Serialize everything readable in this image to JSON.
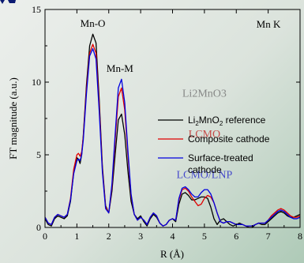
{
  "chart_data": {
    "type": "line",
    "panel_label": "Mn K",
    "xlabel": "R (Å)",
    "ylabel": "FT magnitude (a.u.)",
    "xlim": [
      0,
      8
    ],
    "ylim": [
      0,
      15
    ],
    "x_ticks": [
      "0",
      "1",
      "2",
      "3",
      "4",
      "5",
      "6",
      "7",
      "8"
    ],
    "y_ticks": [
      "0",
      "5",
      "10",
      "15"
    ],
    "grid": false,
    "legend_position": "right",
    "legend_sub": "2",
    "legend_sup": "3",
    "annotations": [
      {
        "text": "Mn-O",
        "x": 1.5,
        "y": 13.8
      },
      {
        "text": "Mn-M",
        "x": 2.35,
        "y": 10.7
      }
    ],
    "overlay_labels": [
      {
        "text": "Li2MnO3",
        "color": "#6a6a6a",
        "x": 5.0,
        "y": 9.0
      },
      {
        "text": "LCMO",
        "color": "#c01818",
        "x": 5.0,
        "y": 6.2
      },
      {
        "text": "LCMO/LNP",
        "color": "#1515c8",
        "x": 5.0,
        "y": 3.4
      }
    ],
    "series": [
      {
        "name": "Li2MnO3 reference",
        "legend": {
          "pre": "Li",
          "mid": "MnO",
          "post": " reference"
        },
        "color": "#000000",
        "x": [
          0.0,
          0.1,
          0.2,
          0.3,
          0.4,
          0.5,
          0.6,
          0.7,
          0.8,
          0.9,
          1.0,
          1.05,
          1.1,
          1.15,
          1.2,
          1.3,
          1.4,
          1.5,
          1.6,
          1.7,
          1.8,
          1.9,
          2.0,
          2.1,
          2.2,
          2.3,
          2.4,
          2.5,
          2.6,
          2.7,
          2.8,
          2.9,
          3.0,
          3.1,
          3.2,
          3.3,
          3.4,
          3.5,
          3.6,
          3.7,
          3.8,
          3.9,
          4.0,
          4.1,
          4.2,
          4.3,
          4.4,
          4.5,
          4.6,
          4.7,
          4.8,
          4.9,
          5.0,
          5.1,
          5.2,
          5.3,
          5.4,
          5.5,
          5.6,
          5.7,
          5.8,
          5.9,
          6.0,
          6.1,
          6.2,
          6.3,
          6.4,
          6.5,
          6.6,
          6.7,
          6.8,
          6.9,
          7.0,
          7.1,
          7.2,
          7.3,
          7.4,
          7.5,
          7.6,
          7.7,
          7.8,
          7.9,
          8.0
        ],
        "y": [
          0.6,
          0.2,
          0.1,
          0.6,
          0.8,
          0.7,
          0.6,
          0.8,
          1.8,
          3.8,
          4.8,
          4.7,
          4.4,
          5.0,
          6.3,
          9.8,
          12.5,
          13.3,
          12.7,
          8.8,
          4.2,
          1.5,
          1.0,
          2.5,
          5.0,
          7.4,
          7.8,
          6.4,
          3.9,
          1.8,
          0.9,
          0.6,
          0.8,
          0.4,
          0.1,
          0.6,
          0.9,
          0.7,
          0.3,
          0.1,
          0.2,
          0.5,
          0.6,
          0.4,
          1.6,
          2.3,
          2.4,
          2.2,
          1.9,
          1.9,
          2.0,
          2.1,
          2.1,
          2.0,
          1.4,
          0.6,
          0.2,
          0.5,
          0.6,
          0.4,
          0.2,
          0.1,
          0.2,
          0.3,
          0.2,
          0.1,
          0.0,
          0.0,
          0.2,
          0.3,
          0.2,
          0.2,
          0.4,
          0.6,
          0.8,
          1.0,
          1.1,
          1.0,
          0.8,
          0.7,
          0.7,
          0.8,
          0.9
        ]
      },
      {
        "name": "Composite cathode",
        "legend": {
          "pre": "Composite cathode"
        },
        "color": "#e00000",
        "x": [
          0.0,
          0.1,
          0.2,
          0.3,
          0.4,
          0.5,
          0.6,
          0.7,
          0.8,
          0.9,
          1.0,
          1.05,
          1.1,
          1.15,
          1.2,
          1.3,
          1.4,
          1.5,
          1.6,
          1.7,
          1.8,
          1.9,
          2.0,
          2.1,
          2.2,
          2.3,
          2.4,
          2.5,
          2.6,
          2.7,
          2.8,
          2.9,
          3.0,
          3.1,
          3.2,
          3.3,
          3.4,
          3.5,
          3.6,
          3.7,
          3.8,
          3.9,
          4.0,
          4.1,
          4.2,
          4.3,
          4.4,
          4.5,
          4.6,
          4.7,
          4.8,
          4.9,
          5.0,
          5.1,
          5.2,
          5.3,
          5.4,
          5.5,
          5.6,
          5.7,
          5.8,
          5.9,
          6.0,
          6.1,
          6.2,
          6.3,
          6.4,
          6.5,
          6.6,
          6.7,
          6.8,
          6.9,
          7.0,
          7.1,
          7.2,
          7.3,
          7.4,
          7.5,
          7.6,
          7.7,
          7.8,
          7.9,
          8.0
        ],
        "y": [
          0.7,
          0.3,
          0.2,
          0.7,
          0.9,
          0.8,
          0.7,
          0.9,
          2.0,
          4.0,
          5.0,
          5.1,
          4.9,
          5.2,
          6.2,
          9.5,
          12.0,
          12.6,
          12.0,
          8.4,
          4.0,
          1.4,
          1.0,
          2.8,
          6.0,
          9.0,
          9.6,
          8.1,
          5.0,
          2.2,
          0.9,
          0.5,
          0.7,
          0.5,
          0.2,
          0.7,
          1.0,
          0.8,
          0.3,
          0.1,
          0.2,
          0.5,
          0.6,
          0.5,
          1.9,
          2.6,
          2.7,
          2.5,
          2.1,
          1.8,
          1.5,
          1.6,
          2.0,
          2.2,
          2.1,
          1.7,
          1.0,
          0.4,
          0.3,
          0.4,
          0.4,
          0.3,
          0.2,
          0.2,
          0.2,
          0.1,
          0.1,
          0.1,
          0.2,
          0.3,
          0.3,
          0.3,
          0.5,
          0.8,
          1.0,
          1.2,
          1.3,
          1.2,
          1.0,
          0.8,
          0.7,
          0.7,
          0.8
        ]
      },
      {
        "name": "Surface-treated cathode",
        "legend": {
          "pre": "Surface-treated",
          "line2": "cathode"
        },
        "color": "#0000e0",
        "x": [
          0.0,
          0.1,
          0.2,
          0.3,
          0.4,
          0.5,
          0.6,
          0.7,
          0.8,
          0.9,
          1.0,
          1.05,
          1.1,
          1.15,
          1.2,
          1.3,
          1.4,
          1.5,
          1.6,
          1.7,
          1.8,
          1.9,
          2.0,
          2.1,
          2.2,
          2.3,
          2.4,
          2.5,
          2.6,
          2.7,
          2.8,
          2.9,
          3.0,
          3.1,
          3.2,
          3.3,
          3.4,
          3.5,
          3.6,
          3.7,
          3.8,
          3.9,
          4.0,
          4.1,
          4.2,
          4.3,
          4.4,
          4.5,
          4.6,
          4.7,
          4.8,
          4.9,
          5.0,
          5.1,
          5.2,
          5.3,
          5.4,
          5.5,
          5.6,
          5.7,
          5.8,
          5.9,
          6.0,
          6.1,
          6.2,
          6.3,
          6.4,
          6.5,
          6.6,
          6.7,
          6.8,
          6.9,
          7.0,
          7.1,
          7.2,
          7.3,
          7.4,
          7.5,
          7.6,
          7.7,
          7.8,
          7.9,
          8.0
        ],
        "y": [
          0.7,
          0.3,
          0.2,
          0.7,
          0.9,
          0.8,
          0.7,
          0.9,
          1.9,
          3.7,
          4.6,
          4.7,
          4.6,
          5.0,
          6.0,
          9.2,
          11.8,
          12.3,
          11.6,
          8.0,
          3.8,
          1.3,
          1.0,
          3.0,
          6.4,
          9.6,
          10.2,
          8.6,
          5.3,
          2.3,
          0.9,
          0.5,
          0.7,
          0.5,
          0.2,
          0.7,
          1.0,
          0.8,
          0.3,
          0.1,
          0.2,
          0.5,
          0.6,
          0.5,
          2.0,
          2.7,
          2.8,
          2.6,
          2.3,
          2.1,
          2.1,
          2.4,
          2.6,
          2.6,
          2.3,
          1.7,
          1.0,
          0.4,
          0.3,
          0.4,
          0.4,
          0.3,
          0.2,
          0.2,
          0.2,
          0.1,
          0.1,
          0.1,
          0.2,
          0.3,
          0.3,
          0.3,
          0.5,
          0.7,
          0.9,
          1.1,
          1.2,
          1.1,
          0.9,
          0.7,
          0.6,
          0.6,
          0.7
        ]
      }
    ]
  }
}
